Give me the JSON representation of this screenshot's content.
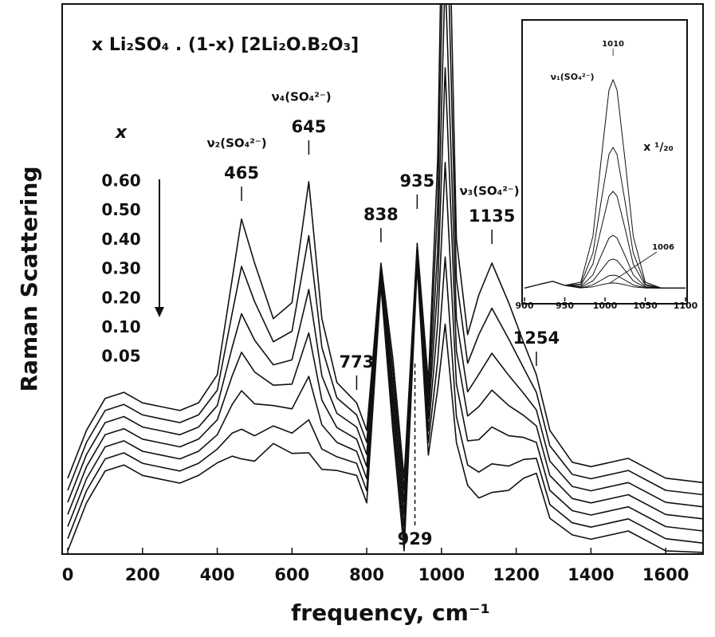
{
  "chart_data": [
    {
      "type": "line",
      "title": "x Li₂SO₄ . (1-x) [2Li₂O.B₂O₃]",
      "x_label": "frequency, cm⁻¹",
      "y_label": "Raman Scattering",
      "legend_title": "x",
      "color": "#111111",
      "xlim": [
        -15,
        1700
      ],
      "ylim": [
        0,
        100
      ],
      "xticks": [
        0,
        200,
        400,
        600,
        800,
        1000,
        1200,
        1400,
        1600
      ],
      "peaks": [
        465,
        645,
        773,
        838,
        935,
        1135,
        1254,
        929
      ],
      "annotations": [
        "ν₂(SO₄²⁻)",
        "ν₄(SO₄²⁻)",
        "ν₃(SO₄²⁻)"
      ],
      "x": [
        0,
        50,
        100,
        150,
        200,
        250,
        300,
        350,
        400,
        440,
        465,
        500,
        550,
        600,
        645,
        680,
        720,
        773,
        800,
        838,
        870,
        900,
        935,
        965,
        990,
        1010,
        1040,
        1070,
        1100,
        1135,
        1180,
        1220,
        1254,
        1290,
        1350,
        1400,
        1500,
        1600,
        1700
      ],
      "series": [
        {
          "name": "0.60",
          "values": [
            13.8,
            22.5,
            28.3,
            29.4,
            27.5,
            26.8,
            26.1,
            27.5,
            32.6,
            50,
            60.9,
            52.9,
            42.8,
            45.7,
            67.7,
            42.8,
            31.2,
            27.5,
            22.5,
            52.9,
            35.5,
            13.8,
            56.5,
            31.2,
            71.7,
            150,
            57.2,
            39.9,
            47.1,
            52.9,
            45.7,
            38.4,
            32.6,
            22.5,
            16.7,
            15.9,
            17.4,
            13.8,
            13
          ]
        },
        {
          "name": "0.50",
          "values": [
            11.6,
            20.3,
            26.1,
            27.2,
            25.3,
            24.6,
            23.9,
            25.3,
            29.8,
            43.8,
            52.3,
            45.9,
            38.6,
            40.5,
            57.9,
            37.6,
            28.4,
            25.3,
            20.3,
            52.2,
            33.3,
            11.6,
            55.8,
            29.0,
            63.5,
            127.8,
            50.0,
            34.7,
            39.9,
            44.7,
            39.1,
            33.8,
            29.4,
            19.7,
            14.5,
            13.7,
            15.2,
            11.6,
            10.8
          ]
        },
        {
          "name": "0.40",
          "values": [
            9.4,
            18.1,
            23.9,
            25.0,
            23.1,
            22.4,
            21.7,
            23.1,
            27.0,
            37.6,
            43.7,
            38.9,
            34.4,
            35.3,
            48.1,
            32.4,
            25.6,
            23.1,
            18.1,
            51.6,
            31.1,
            9.4,
            55.2,
            26.8,
            55.3,
            105.6,
            42.8,
            29.5,
            32.7,
            36.5,
            32.5,
            29.2,
            26.2,
            16.9,
            12.3,
            11.5,
            13.0,
            9.4,
            8.6
          ]
        },
        {
          "name": "0.30",
          "values": [
            7.2,
            15.9,
            21.7,
            22.8,
            20.9,
            20.2,
            19.5,
            20.9,
            24.4,
            32.4,
            36.7,
            33.1,
            30.7,
            30.9,
            40.2,
            28.0,
            23.0,
            20.9,
            15.9,
            50.9,
            28.9,
            7.2,
            54.5,
            24.6,
            48.6,
            88.4,
            36.9,
            25.1,
            26.8,
            29.8,
            27.0,
            25.2,
            23.3,
            14.3,
            10.1,
            9.3,
            10.8,
            7.2,
            6.4
          ]
        },
        {
          "name": "0.20",
          "values": [
            5.0,
            13.7,
            19.5,
            20.6,
            18.7,
            18.0,
            17.3,
            18.7,
            21.7,
            27.2,
            29.7,
            27.3,
            27.0,
            26.4,
            32.3,
            23.5,
            20.3,
            18.7,
            13.7,
            50.3,
            26.7,
            5.0,
            53.9,
            22.4,
            41.9,
            71.2,
            30.9,
            20.6,
            20.8,
            23.1,
            21.5,
            21.2,
            20.3,
            11.6,
            7.9,
            7.1,
            8.6,
            5.0,
            4.2
          ]
        },
        {
          "name": "0.10",
          "values": [
            2.8,
            11.5,
            17.3,
            18.4,
            16.5,
            15.8,
            15.1,
            16.5,
            19.1,
            22.0,
            22.7,
            21.5,
            23.3,
            22.0,
            24.4,
            19.1,
            17.7,
            16.5,
            11.5,
            49.6,
            24.5,
            2.8,
            53.2,
            20.2,
            35.2,
            54.0,
            25.0,
            16.2,
            14.9,
            16.4,
            16.0,
            17.2,
            17.4,
            9.0,
            5.7,
            4.9,
            6.4,
            2.8,
            2.0
          ]
        },
        {
          "name": "0.05",
          "values": [
            0.6,
            9.3,
            15.1,
            16.2,
            14.3,
            13.6,
            12.9,
            14.3,
            16.6,
            17.8,
            17.3,
            16.9,
            20.1,
            18.3,
            18.4,
            15.4,
            15.2,
            14.3,
            9.3,
            48.9,
            22.3,
            0.6,
            52.5,
            18.0,
            30.0,
            41.8,
            20.3,
            12.5,
            10.2,
            11.2,
            11.6,
            13.8,
            14.7,
            6.5,
            3.5,
            2.7,
            4.2,
            0.6,
            0.3
          ]
        }
      ]
    },
    {
      "type": "line",
      "color": "#111111",
      "xlim": [
        900,
        1100
      ],
      "ylim": [
        0,
        100
      ],
      "xticks": [
        900,
        950,
        1000,
        1050,
        1100
      ],
      "peaks": [
        1010,
        1006
      ],
      "annotations": [
        "ν₁(SO₄²⁻)",
        "x ¹/₂₀"
      ],
      "x": [
        900,
        920,
        935,
        950,
        970,
        985,
        995,
        1005,
        1010,
        1015,
        1025,
        1035,
        1050,
        1070,
        1100
      ],
      "series": [
        {
          "values": [
            4,
            5.5,
            6.5,
            5.0,
            6.2,
            23.2,
            50.9,
            77.1,
            80.9,
            77.1,
            50.9,
            23.2,
            6.2,
            4.0,
            4.0
          ]
        },
        {
          "values": [
            4,
            5.5,
            6.5,
            5.0,
            5.5,
            17.0,
            35.7,
            53.3,
            55.9,
            53.3,
            35.7,
            17.0,
            5.5,
            4,
            4
          ]
        },
        {
          "values": [
            4,
            5.5,
            6.5,
            5.0,
            5.0,
            12.9,
            25.8,
            37.9,
            39.7,
            37.9,
            25.8,
            12.9,
            5.0,
            4,
            4
          ]
        },
        {
          "values": [
            4,
            5.5,
            6.5,
            5.0,
            4.5,
            8.9,
            15.9,
            22.5,
            23.5,
            22.5,
            15.9,
            8.9,
            4.5,
            4,
            4
          ]
        },
        {
          "values": [
            4,
            5.5,
            6.5,
            5.0,
            4.3,
            6.7,
            10.5,
            14.2,
            14.7,
            14.2,
            10.5,
            6.7,
            4.3,
            4,
            4
          ]
        },
        {
          "values": [
            4,
            5.5,
            6.5,
            5.0,
            4.1,
            5.2,
            6.9,
            8.6,
            8.8,
            8.6,
            6.9,
            5.2,
            4.1,
            4,
            4
          ]
        },
        {
          "values": [
            4,
            5.5,
            6.5,
            5.0,
            4.1,
            4.5,
            5.2,
            5.8,
            5.9,
            5.8,
            5.2,
            4.5,
            4.1,
            4,
            4
          ]
        }
      ]
    }
  ]
}
